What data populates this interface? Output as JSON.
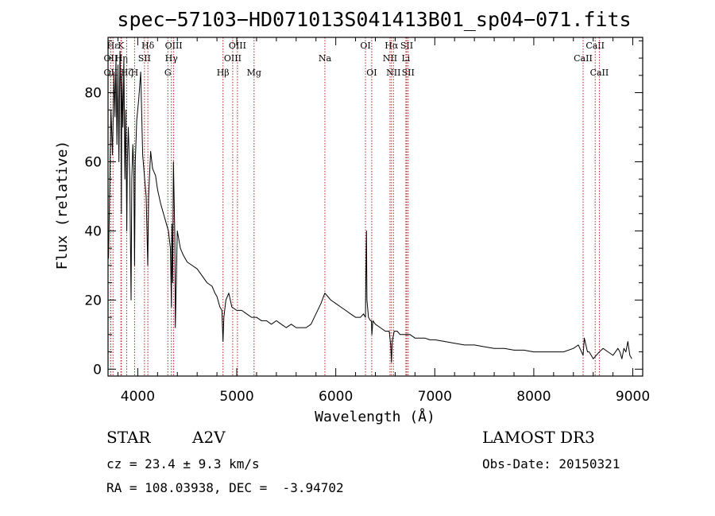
{
  "chart_data": {
    "type": "line",
    "title": "spec−57103−HD071013S041413B01_sp04−071.fits",
    "xlabel": "Wavelength (Å)",
    "ylabel": "Flux (relative)",
    "xlim": [
      3700,
      9100
    ],
    "ylim": [
      -2,
      96
    ],
    "xticks": [
      4000,
      5000,
      6000,
      7000,
      8000,
      9000
    ],
    "yticks": [
      0,
      20,
      40,
      60,
      80
    ],
    "grid": false,
    "series": [
      {
        "name": "spectrum",
        "color": "#000000",
        "x": [
          3705,
          3715,
          3730,
          3745,
          3760,
          3770,
          3780,
          3790,
          3800,
          3810,
          3820,
          3830,
          3835,
          3840,
          3850,
          3860,
          3870,
          3880,
          3889,
          3895,
          3905,
          3920,
          3933,
          3940,
          3950,
          3960,
          3968,
          3975,
          3990,
          4010,
          4030,
          4050,
          4070,
          4085,
          4101,
          4110,
          4130,
          4150,
          4180,
          4200,
          4230,
          4260,
          4290,
          4310,
          4330,
          4340,
          4345,
          4352,
          4360,
          4375,
          4380,
          4400,
          4430,
          4460,
          4500,
          4550,
          4600,
          4650,
          4700,
          4750,
          4780,
          4800,
          4830,
          4850,
          4861,
          4870,
          4890,
          4920,
          4950,
          5000,
          5050,
          5100,
          5150,
          5200,
          5250,
          5300,
          5350,
          5400,
          5450,
          5500,
          5550,
          5600,
          5650,
          5700,
          5750,
          5800,
          5850,
          5890,
          5920,
          5950,
          6000,
          6050,
          6100,
          6150,
          6200,
          6250,
          6280,
          6300,
          6305,
          6310,
          6315,
          6330,
          6350,
          6360,
          6365,
          6375,
          6400,
          6450,
          6500,
          6540,
          6555,
          6563,
          6570,
          6590,
          6620,
          6650,
          6700,
          6750,
          6800,
          6850,
          6900,
          6950,
          7000,
          7100,
          7200,
          7300,
          7400,
          7500,
          7600,
          7700,
          7800,
          7900,
          8000,
          8100,
          8200,
          8300,
          8400,
          8450,
          8498,
          8510,
          8542,
          8560,
          8600,
          8662,
          8700,
          8750,
          8800,
          8850,
          8870,
          8890,
          8910,
          8930,
          8950,
          8970,
          8990
        ],
        "values": [
          32,
          50,
          75,
          62,
          86,
          73,
          90,
          65,
          88,
          60,
          92,
          78,
          45,
          85,
          70,
          90,
          55,
          75,
          40,
          60,
          70,
          55,
          20,
          55,
          65,
          58,
          30,
          60,
          72,
          78,
          86,
          62,
          55,
          50,
          30,
          50,
          63,
          58,
          56,
          52,
          48,
          45,
          42,
          40,
          35,
          18,
          42,
          25,
          60,
          38,
          12,
          40,
          35,
          33,
          31,
          30,
          29,
          27,
          25,
          24,
          22,
          21,
          18,
          17,
          8,
          15,
          20,
          22,
          18,
          17,
          17,
          16,
          15,
          15,
          14,
          14,
          13,
          14,
          13,
          12,
          13,
          12,
          12,
          12,
          13,
          16,
          19,
          22,
          21,
          20,
          19,
          18,
          17,
          16,
          15,
          15,
          16,
          15,
          30,
          40,
          20,
          15,
          14,
          14,
          10,
          14,
          13,
          12,
          11,
          11,
          7,
          2,
          8,
          11,
          11,
          10,
          10,
          10,
          9,
          9,
          9,
          8.5,
          8.5,
          8,
          7.5,
          7,
          7,
          6.5,
          6,
          6,
          5.5,
          5.5,
          5,
          5,
          5,
          5,
          6,
          7,
          4,
          9,
          5,
          5,
          3,
          5,
          6,
          5,
          4,
          6,
          5,
          3,
          6,
          5,
          8,
          4,
          3
        ]
      }
    ],
    "spectral_lines": [
      {
        "label": "Hε",
        "wavelength": 3750,
        "row": 1
      },
      {
        "label": "K",
        "wavelength": 3830,
        "row": 1
      },
      {
        "label": "Hδ",
        "wavelength": 4102,
        "row": 1
      },
      {
        "label": "OIII",
        "wavelength": 4363,
        "row": 1
      },
      {
        "label": "OIII",
        "wavelength": 5007,
        "row": 1
      },
      {
        "label": "OI",
        "wavelength": 6300,
        "row": 1
      },
      {
        "label": "Hα",
        "wavelength": 6563,
        "row": 1
      },
      {
        "label": "SII",
        "wavelength": 6717,
        "row": 1
      },
      {
        "label": "CaII",
        "wavelength": 8620,
        "row": 1
      },
      {
        "label": "OII",
        "wavelength": 3727,
        "row": 2
      },
      {
        "label": "Hη",
        "wavelength": 3835,
        "row": 2
      },
      {
        "label": "SII",
        "wavelength": 4068,
        "row": 2
      },
      {
        "label": "Hγ",
        "wavelength": 4340,
        "row": 2
      },
      {
        "label": "OIII",
        "wavelength": 4959,
        "row": 2
      },
      {
        "label": "Na",
        "wavelength": 5890,
        "row": 2
      },
      {
        "label": "NII",
        "wavelength": 6548,
        "row": 2
      },
      {
        "label": "Li",
        "wavelength": 6708,
        "row": 2
      },
      {
        "label": "CaII",
        "wavelength": 8498,
        "row": 2
      },
      {
        "label": "OII",
        "wavelength": 3727,
        "row": 3
      },
      {
        "label": "Hζ",
        "wavelength": 3889,
        "row": 3
      },
      {
        "label": "H",
        "wavelength": 3968,
        "row": 3
      },
      {
        "label": "G",
        "wavelength": 4304,
        "row": 3
      },
      {
        "label": "Hβ",
        "wavelength": 4861,
        "row": 3
      },
      {
        "label": "Mg",
        "wavelength": 5175,
        "row": 3
      },
      {
        "label": "OI",
        "wavelength": 6363,
        "row": 3
      },
      {
        "label": "NII",
        "wavelength": 6583,
        "row": 3
      },
      {
        "label": "SII",
        "wavelength": 6731,
        "row": 3
      },
      {
        "label": "CaII",
        "wavelength": 8662,
        "row": 3
      }
    ],
    "line_marker_color": "#b22222"
  },
  "info": {
    "object_class": "STAR",
    "subclass": "A2V",
    "survey": "LAMOST DR3",
    "redshift": "cz = 23.4 ± 9.3 km/s",
    "obs_date": "Obs-Date: 20150321",
    "coords": "RA = 108.03938, DEC =  -3.94702"
  }
}
